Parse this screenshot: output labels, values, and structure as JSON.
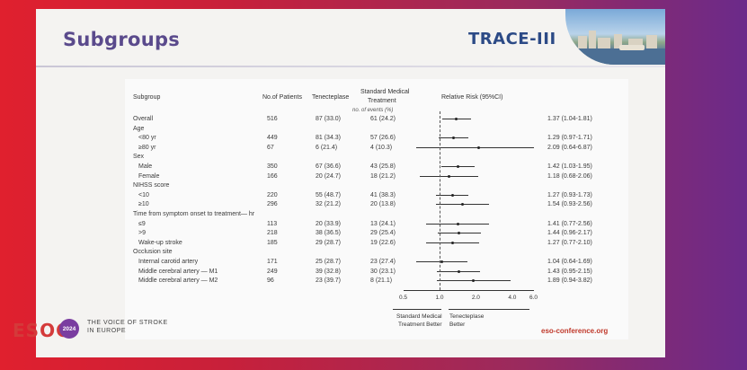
{
  "slide": {
    "title": "Subgroups",
    "logo_text": "TRACE-III",
    "footer_org": "ESOC",
    "footer_year": "2024",
    "footer_tagline_1": "THE VOICE OF STROKE",
    "footer_tagline_2": "IN EUROPE",
    "footer_site": "eso-conference.org"
  },
  "table": {
    "headers": {
      "subgroup": "Subgroup",
      "patients": "No.of Patients",
      "tnk": "Tenecteplase",
      "smt_1": "Standard Medical",
      "smt_2": "Treatment",
      "rr": "Relative Risk (95%CI)",
      "events": "no. of events (%)"
    },
    "rows": [
      {
        "label": "Overall",
        "patients": "516",
        "tnk": "87 (33.0)",
        "smt": "61 (24.2)",
        "rr_text": "1.37 (1.04-1.81)",
        "rr": 1.37,
        "lo": 1.04,
        "hi": 1.81
      },
      {
        "label": "Age",
        "heading": true
      },
      {
        "label": "<80 yr",
        "patients": "449",
        "tnk": "81 (34.3)",
        "smt": "57 (26.6)",
        "rr_text": "1.29 (0.97-1.71)",
        "rr": 1.29,
        "lo": 0.97,
        "hi": 1.71
      },
      {
        "label": "≥80 yr",
        "patients": "67",
        "tnk": "6 (21.4)",
        "smt": "4 (10.3)",
        "rr_text": "2.09 (0.64-6.87)",
        "rr": 2.09,
        "lo": 0.64,
        "hi": 6.87
      },
      {
        "label": "Sex",
        "heading": true
      },
      {
        "label": "Male",
        "patients": "350",
        "tnk": "67 (36.6)",
        "smt": "43 (25.8)",
        "rr_text": "1.42 (1.03-1.95)",
        "rr": 1.42,
        "lo": 1.03,
        "hi": 1.95
      },
      {
        "label": "Female",
        "patients": "166",
        "tnk": "20 (24.7)",
        "smt": "18 (21.2)",
        "rr_text": "1.18 (0.68-2.06)",
        "rr": 1.18,
        "lo": 0.68,
        "hi": 2.06
      },
      {
        "label": "NIHSS score",
        "heading": true
      },
      {
        "label": "<10",
        "patients": "220",
        "tnk": "55 (48.7)",
        "smt": "41 (38.3)",
        "rr_text": "1.27 (0.93-1.73)",
        "rr": 1.27,
        "lo": 0.93,
        "hi": 1.73
      },
      {
        "label": "≥10",
        "patients": "296",
        "tnk": "32 (21.2)",
        "smt": "20 (13.8)",
        "rr_text": "1.54 (0.93-2.56)",
        "rr": 1.54,
        "lo": 0.93,
        "hi": 2.56
      },
      {
        "label": "Time from symptom onset to treatment— hr",
        "heading": true
      },
      {
        "label": "≤9",
        "patients": "113",
        "tnk": "20 (33.9)",
        "smt": "13 (24.1)",
        "rr_text": "1.41 (0.77-2.56)",
        "rr": 1.41,
        "lo": 0.77,
        "hi": 2.56
      },
      {
        "label": ">9",
        "patients": "218",
        "tnk": "38 (36.5)",
        "smt": "29 (25.4)",
        "rr_text": "1.44 (0.96-2.17)",
        "rr": 1.44,
        "lo": 0.96,
        "hi": 2.17
      },
      {
        "label": "Wake-up stroke",
        "patients": "185",
        "tnk": "29 (28.7)",
        "smt": "19 (22.6)",
        "rr_text": "1.27 (0.77-2.10)",
        "rr": 1.27,
        "lo": 0.77,
        "hi": 2.1
      },
      {
        "label": "Occlusion site",
        "heading": true
      },
      {
        "label": "Internal carotid artery",
        "patients": "171",
        "tnk": "25 (28.7)",
        "smt": "23 (27.4)",
        "rr_text": "1.04 (0.64-1.69)",
        "rr": 1.04,
        "lo": 0.64,
        "hi": 1.69
      },
      {
        "label": "Middle cerebral artery — M1",
        "patients": "249",
        "tnk": "39 (32.8)",
        "smt": "30 (23.1)",
        "rr_text": "1.43 (0.95-2.15)",
        "rr": 1.43,
        "lo": 0.95,
        "hi": 2.15
      },
      {
        "label": "Middle cerebral artery — M2",
        "patients": "96",
        "tnk": "23 (39.7)",
        "smt": "8 (21.1)",
        "rr_text": "1.89 (0.94-3.82)",
        "rr": 1.89,
        "lo": 0.94,
        "hi": 3.82
      }
    ],
    "axis_ticks": [
      "0.5",
      "1.0",
      "2.0",
      "4.0",
      "6.0"
    ],
    "favors_left_1": "Standard Medical",
    "favors_left_2": "Treatment Better",
    "favors_right_1": "Tenecteplase",
    "favors_right_2": "Better"
  },
  "chart_data": {
    "type": "scatter",
    "scale": "log",
    "xlim": [
      0.5,
      6.0
    ],
    "x_ticks": [
      0.5,
      1.0,
      2.0,
      4.0,
      6.0
    ],
    "reference_line": 1.0
  }
}
